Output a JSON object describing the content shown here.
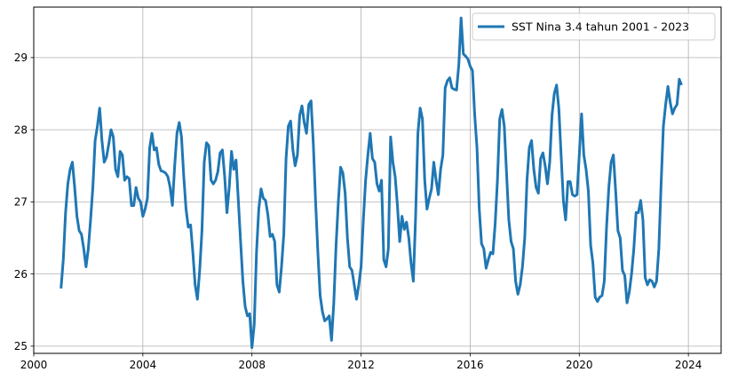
{
  "chart_data": {
    "type": "line",
    "title": "",
    "xlabel": "",
    "ylabel": "",
    "xlim": [
      2000.0,
      2025.2
    ],
    "ylim": [
      24.9,
      29.7
    ],
    "x_ticks": [
      2000,
      2004,
      2008,
      2012,
      2016,
      2020,
      2024
    ],
    "y_ticks": [
      25,
      26,
      27,
      28,
      29
    ],
    "grid": true,
    "legend": "top-right",
    "series": [
      {
        "name": "SST Nina 3.4 tahun 2001 - 2023",
        "color": "#1f77b4",
        "start_year": 2001,
        "start_month": 1,
        "values": [
          25.8,
          26.2,
          26.85,
          27.25,
          27.45,
          27.55,
          27.2,
          26.8,
          26.6,
          26.55,
          26.35,
          26.1,
          26.35,
          26.75,
          27.2,
          27.85,
          28.05,
          28.3,
          27.85,
          27.55,
          27.62,
          27.8,
          28.0,
          27.9,
          27.45,
          27.35,
          27.7,
          27.65,
          27.3,
          27.35,
          27.32,
          26.95,
          26.95,
          27.2,
          27.05,
          27.0,
          26.8,
          26.9,
          27.05,
          27.75,
          27.95,
          27.72,
          27.75,
          27.52,
          27.43,
          27.42,
          27.4,
          27.35,
          27.2,
          26.95,
          27.5,
          27.95,
          28.1,
          27.9,
          27.35,
          26.9,
          26.65,
          26.68,
          26.3,
          25.85,
          25.65,
          26.05,
          26.6,
          27.55,
          27.82,
          27.78,
          27.3,
          27.25,
          27.3,
          27.42,
          27.68,
          27.72,
          27.35,
          26.85,
          27.2,
          27.7,
          27.45,
          27.58,
          27.02,
          26.45,
          25.9,
          25.55,
          25.42,
          25.45,
          24.98,
          25.3,
          26.3,
          26.9,
          27.18,
          27.05,
          27.02,
          26.82,
          26.52,
          26.55,
          26.45,
          25.85,
          25.75,
          26.1,
          26.55,
          27.6,
          28.05,
          28.12,
          27.72,
          27.5,
          27.65,
          28.2,
          28.33,
          28.1,
          27.95,
          28.35,
          28.4,
          27.8,
          27.0,
          26.3,
          25.7,
          25.48,
          25.35,
          25.38,
          25.42,
          25.08,
          25.6,
          26.4,
          27.0,
          27.48,
          27.4,
          27.12,
          26.5,
          26.1,
          26.05,
          25.85,
          25.65,
          25.85,
          26.1,
          26.75,
          27.3,
          27.65,
          27.95,
          27.6,
          27.55,
          27.25,
          27.15,
          27.3,
          26.2,
          26.1,
          26.35,
          27.9,
          27.55,
          27.35,
          26.95,
          26.45,
          26.8,
          26.62,
          26.72,
          26.5,
          26.15,
          25.9,
          26.8,
          27.95,
          28.3,
          28.15,
          27.3,
          26.9,
          27.05,
          27.18,
          27.55,
          27.3,
          27.1,
          27.45,
          27.65,
          28.58,
          28.68,
          28.72,
          28.58,
          28.56,
          28.55,
          28.9,
          29.55,
          29.05,
          29.02,
          28.98,
          28.88,
          28.82,
          28.2,
          27.75,
          26.9,
          26.42,
          26.35,
          26.08,
          26.2,
          26.3,
          26.28,
          26.7,
          27.3,
          28.15,
          28.28,
          28.05,
          27.4,
          26.75,
          26.45,
          26.35,
          25.9,
          25.72,
          25.85,
          26.1,
          26.5,
          27.3,
          27.75,
          27.85,
          27.45,
          27.2,
          27.12,
          27.6,
          27.68,
          27.5,
          27.25,
          27.55,
          28.2,
          28.5,
          28.62,
          28.3,
          27.65,
          27.02,
          26.75,
          27.28,
          27.28,
          27.1,
          27.08,
          27.1,
          27.65,
          28.22,
          27.65,
          27.45,
          27.15,
          26.4,
          26.15,
          25.68,
          25.62,
          25.68,
          25.7,
          25.9,
          26.65,
          27.2,
          27.55,
          27.65,
          27.15,
          26.6,
          26.5,
          26.05,
          25.98,
          25.6,
          25.75,
          26.0,
          26.35,
          26.85,
          26.85,
          27.02,
          26.75,
          25.95,
          25.85,
          25.92,
          25.9,
          25.82,
          25.9,
          26.35,
          27.25,
          28.05,
          28.35,
          28.6,
          28.38,
          28.22,
          28.3,
          28.35,
          28.7,
          28.62
        ]
      }
    ]
  }
}
